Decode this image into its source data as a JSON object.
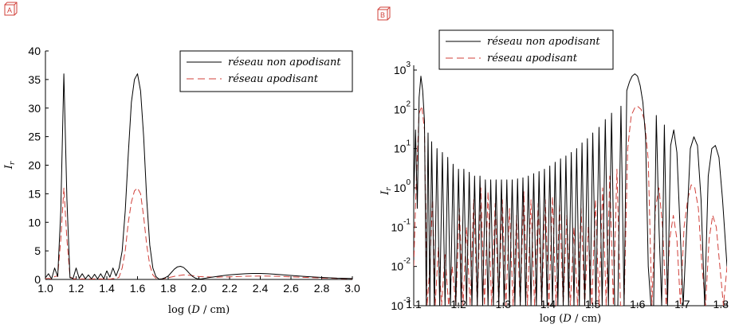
{
  "chart_data": [
    {
      "panel_label": "A",
      "type": "line",
      "xlabel": "log (D / cm)",
      "ylabel": "I_r",
      "xlim": [
        1.0,
        3.0
      ],
      "ylim": [
        0,
        40
      ],
      "xticks": [
        "1.0",
        "1.2",
        "1.4",
        "1.6",
        "1.8",
        "2.0",
        "2.2",
        "2.4",
        "2.6",
        "2.8",
        "3.0"
      ],
      "yticks": [
        "0",
        "5",
        "10",
        "15",
        "20",
        "25",
        "30",
        "35",
        "40"
      ],
      "grid": false,
      "legend_position": "top-right",
      "series": [
        {
          "name": "réseau non apodisant",
          "color": "#000000",
          "style": "solid",
          "x": [
            1.0,
            1.02,
            1.04,
            1.06,
            1.08,
            1.1,
            1.12,
            1.14,
            1.16,
            1.18,
            1.2,
            1.22,
            1.24,
            1.26,
            1.28,
            1.3,
            1.32,
            1.34,
            1.36,
            1.38,
            1.4,
            1.42,
            1.44,
            1.46,
            1.48,
            1.5,
            1.52,
            1.54,
            1.56,
            1.58,
            1.6,
            1.62,
            1.64,
            1.66,
            1.68,
            1.7,
            1.72,
            1.74,
            1.76,
            1.78,
            1.8,
            1.82,
            1.84,
            1.86,
            1.88,
            1.9,
            1.92,
            1.94,
            1.96,
            1.98,
            2.0,
            2.02,
            2.04,
            2.06,
            2.1,
            2.15,
            2.2,
            2.25,
            2.3,
            2.35,
            2.4,
            2.45,
            2.5,
            2.55,
            2.6,
            2.7,
            2.8,
            2.9,
            3.0
          ],
          "y": [
            0.3,
            1.0,
            0.1,
            2.0,
            0.5,
            12.0,
            36.0,
            14.0,
            0.3,
            0.2,
            2.0,
            0.2,
            1.0,
            0.1,
            0.8,
            0.1,
            0.9,
            0.1,
            1.0,
            0.1,
            1.5,
            0.4,
            2.0,
            0.6,
            2.0,
            5.0,
            12.0,
            22.0,
            31.0,
            35.0,
            36.0,
            33.0,
            25.0,
            14.0,
            6.0,
            2.0,
            0.5,
            0.05,
            0.1,
            0.3,
            0.6,
            1.2,
            1.8,
            2.2,
            2.3,
            2.1,
            1.6,
            1.0,
            0.5,
            0.2,
            0.05,
            0.1,
            0.2,
            0.3,
            0.45,
            0.65,
            0.8,
            0.9,
            1.0,
            1.05,
            1.05,
            1.0,
            0.9,
            0.8,
            0.7,
            0.5,
            0.35,
            0.22,
            0.15
          ]
        },
        {
          "name": "réseau apodisant",
          "color": "#d0403a",
          "style": "dashed",
          "x": [
            1.0,
            1.02,
            1.04,
            1.06,
            1.08,
            1.1,
            1.12,
            1.14,
            1.16,
            1.18,
            1.2,
            1.22,
            1.24,
            1.26,
            1.28,
            1.3,
            1.32,
            1.34,
            1.36,
            1.38,
            1.4,
            1.42,
            1.44,
            1.46,
            1.48,
            1.5,
            1.52,
            1.54,
            1.56,
            1.58,
            1.6,
            1.62,
            1.64,
            1.66,
            1.68,
            1.7,
            1.72,
            1.74,
            1.76,
            1.8,
            1.85,
            1.9,
            1.95,
            2.0,
            2.1,
            2.2,
            2.3,
            2.4,
            2.5,
            2.6,
            2.7,
            2.8,
            2.9,
            3.0
          ],
          "y": [
            0.1,
            0.2,
            0.05,
            0.5,
            0.6,
            7.0,
            16.0,
            7.0,
            0.5,
            0.1,
            0.1,
            0.05,
            0.1,
            0.05,
            0.1,
            0.05,
            0.1,
            0.05,
            0.1,
            0.05,
            0.1,
            0.05,
            0.15,
            0.1,
            0.4,
            2.0,
            5.0,
            10.0,
            13.5,
            15.5,
            16.0,
            15.0,
            11.0,
            6.0,
            2.5,
            0.8,
            0.2,
            0.05,
            0.1,
            0.3,
            0.6,
            0.8,
            0.7,
            0.5,
            0.4,
            0.45,
            0.55,
            0.6,
            0.55,
            0.45,
            0.35,
            0.25,
            0.18,
            0.12
          ]
        }
      ]
    },
    {
      "panel_label": "B",
      "type": "line",
      "xlabel": "log (D / cm)",
      "ylabel": "I_r",
      "xlim": [
        1.1,
        1.8
      ],
      "ylim": [
        0.001,
        1000
      ],
      "log_y": true,
      "xticks": [
        "1.1",
        "1.2",
        "1.3",
        "1.4",
        "1.5",
        "1.6",
        "1.7",
        "1.8"
      ],
      "yticks": [
        {
          "base": "10",
          "exp": "3"
        },
        {
          "base": "10",
          "exp": "2"
        },
        {
          "base": "10",
          "exp": "1"
        },
        {
          "base": "10",
          "exp": "0"
        },
        {
          "base": "10",
          "exp": "-1"
        },
        {
          "base": "10",
          "exp": "-2"
        },
        {
          "base": "10",
          "exp": "-3"
        }
      ],
      "grid": false,
      "legend_position": "top-left",
      "series": [
        {
          "name": "réseau non apodisant",
          "color": "#000000",
          "style": "solid",
          "x": [
            1.1,
            1.104,
            1.108,
            1.112,
            1.116,
            1.12,
            1.124,
            1.128,
            1.132,
            1.136,
            1.14,
            1.146,
            1.152,
            1.158,
            1.164,
            1.17,
            1.176,
            1.182,
            1.188,
            1.194,
            1.2,
            1.206,
            1.212,
            1.218,
            1.224,
            1.23,
            1.236,
            1.242,
            1.248,
            1.254,
            1.26,
            1.266,
            1.272,
            1.278,
            1.284,
            1.29,
            1.296,
            1.302,
            1.308,
            1.314,
            1.32,
            1.326,
            1.332,
            1.338,
            1.344,
            1.35,
            1.356,
            1.362,
            1.368,
            1.374,
            1.38,
            1.386,
            1.392,
            1.398,
            1.404,
            1.41,
            1.416,
            1.422,
            1.428,
            1.434,
            1.44,
            1.446,
            1.452,
            1.458,
            1.464,
            1.47,
            1.476,
            1.482,
            1.488,
            1.494,
            1.5,
            1.507,
            1.514,
            1.521,
            1.528,
            1.535,
            1.542,
            1.549,
            1.556,
            1.563,
            1.57,
            1.576,
            1.582,
            1.588,
            1.594,
            1.6,
            1.606,
            1.612,
            1.618,
            1.624,
            1.63,
            1.636,
            1.642,
            1.648,
            1.654,
            1.66,
            1.667,
            1.674,
            1.681,
            1.688,
            1.695,
            1.702,
            1.71,
            1.718,
            1.726,
            1.734,
            1.742,
            1.75,
            1.758,
            1.766,
            1.774,
            1.782,
            1.79,
            1.8
          ],
          "y": [
            0.5,
            30.0,
            0.3,
            200.0,
            700.0,
            300.0,
            50.0,
            0.001,
            25.0,
            0.001,
            15.0,
            0.001,
            10.0,
            0.001,
            8.0,
            0.001,
            6.0,
            0.001,
            4.0,
            0.001,
            3.0,
            0.001,
            3.0,
            0.001,
            2.5,
            0.001,
            2.0,
            0.001,
            2.0,
            0.001,
            1.6,
            0.001,
            1.6,
            0.001,
            1.6,
            0.001,
            1.6,
            0.001,
            1.6,
            0.001,
            1.6,
            0.001,
            1.7,
            0.001,
            1.8,
            0.001,
            2.0,
            0.001,
            2.3,
            0.001,
            2.6,
            0.001,
            3.0,
            0.001,
            3.6,
            0.001,
            4.5,
            0.001,
            5.5,
            0.001,
            6.5,
            0.001,
            8.0,
            0.001,
            10.0,
            0.001,
            14.0,
            0.001,
            18.0,
            0.001,
            25.0,
            0.001,
            35.0,
            0.001,
            55.0,
            0.001,
            80.0,
            0.001,
            0.001,
            120.0,
            0.001,
            300.0,
            500.0,
            700.0,
            800.0,
            700.0,
            400.0,
            150.0,
            20.0,
            0.01,
            0.001,
            0.001,
            70.0,
            0.1,
            0.001,
            40.0,
            0.001,
            12.0,
            30.0,
            8.0,
            0.1,
            0.001,
            0.1,
            10.0,
            20.0,
            12.0,
            0.5,
            0.001,
            2.0,
            10.0,
            12.0,
            6.0,
            0.5,
            0.01
          ]
        },
        {
          "name": "réseau apodisant",
          "color": "#d0403a",
          "style": "dashed",
          "x": [
            1.1,
            1.106,
            1.112,
            1.118,
            1.124,
            1.13,
            1.136,
            1.142,
            1.148,
            1.155,
            1.162,
            1.17,
            1.178,
            1.186,
            1.194,
            1.202,
            1.21,
            1.218,
            1.226,
            1.234,
            1.242,
            1.25,
            1.258,
            1.266,
            1.274,
            1.282,
            1.29,
            1.298,
            1.306,
            1.314,
            1.322,
            1.33,
            1.338,
            1.346,
            1.354,
            1.362,
            1.37,
            1.378,
            1.386,
            1.394,
            1.402,
            1.41,
            1.418,
            1.426,
            1.434,
            1.442,
            1.45,
            1.458,
            1.466,
            1.474,
            1.482,
            1.49,
            1.498,
            1.506,
            1.514,
            1.522,
            1.53,
            1.538,
            1.546,
            1.554,
            1.562,
            1.57,
            1.578,
            1.586,
            1.594,
            1.6,
            1.608,
            1.616,
            1.624,
            1.632,
            1.64,
            1.648,
            1.656,
            1.664,
            1.672,
            1.68,
            1.688,
            1.696,
            1.704,
            1.712,
            1.72,
            1.728,
            1.736,
            1.744,
            1.752,
            1.76,
            1.768,
            1.776,
            1.784,
            1.792,
            1.8
          ],
          "y": [
            0.01,
            2.0,
            80.0,
            120.0,
            30.0,
            0.001,
            0.01,
            0.5,
            0.001,
            0.03,
            0.001,
            0.02,
            0.001,
            0.01,
            0.001,
            0.3,
            0.001,
            0.1,
            0.001,
            0.5,
            0.001,
            1.0,
            0.001,
            0.8,
            0.001,
            0.4,
            0.001,
            0.5,
            0.001,
            0.3,
            0.001,
            0.2,
            0.001,
            0.8,
            0.001,
            0.5,
            0.001,
            0.4,
            0.001,
            0.5,
            0.001,
            0.6,
            0.001,
            0.4,
            0.001,
            0.2,
            0.001,
            0.1,
            0.001,
            0.3,
            0.001,
            0.1,
            0.001,
            0.5,
            0.001,
            1.0,
            0.001,
            2.0,
            0.001,
            3.0,
            0.001,
            0.001,
            10.0,
            70.0,
            110.0,
            120.0,
            100.0,
            50.0,
            5.0,
            0.001,
            0.3,
            1.0,
            0.1,
            0.001,
            0.05,
            0.2,
            0.05,
            0.001,
            0.1,
            0.5,
            1.2,
            1.0,
            0.3,
            0.01,
            0.001,
            0.05,
            0.2,
            0.1,
            0.01,
            0.001,
            0.01
          ]
        }
      ]
    }
  ]
}
